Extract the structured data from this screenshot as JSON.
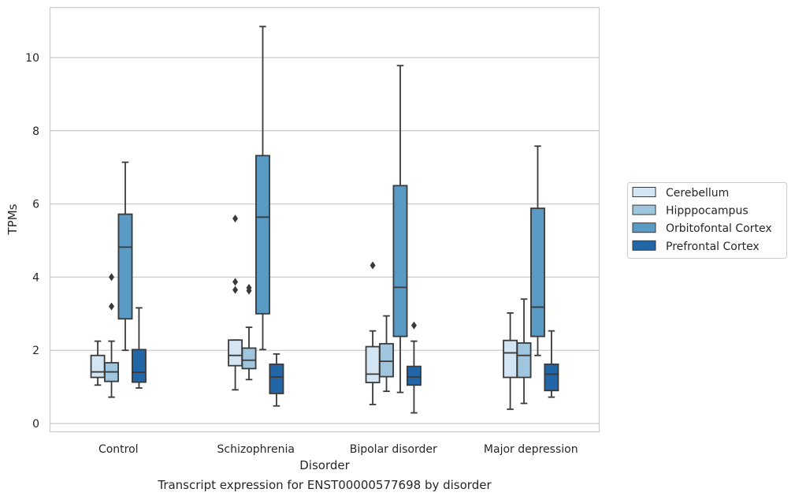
{
  "caption": "Transcript expression for ENST00000577698 by disorder",
  "chart_data": {
    "type": "boxplot",
    "xlabel": "Disorder",
    "ylabel": "TPMs",
    "categories": [
      "Control",
      "Schizophrenia",
      "Bipolar disorder",
      "Major depression"
    ],
    "ylim": [
      -0.2,
      11.4
    ],
    "yticks": [
      0,
      2,
      4,
      6,
      8,
      10
    ],
    "grid": true,
    "legend_position": "right",
    "series": [
      {
        "name": "Cerebellum",
        "color": "#d3e4f3",
        "boxes": [
          {
            "min": 1.05,
            "q1": 1.26,
            "median": 1.41,
            "q3": 1.86,
            "max": 2.25,
            "outliers": []
          },
          {
            "min": 0.92,
            "q1": 1.58,
            "median": 1.86,
            "q3": 2.28,
            "max": 2.28,
            "outliers": [
              5.6,
              3.87,
              3.65
            ]
          },
          {
            "min": 0.52,
            "q1": 1.12,
            "median": 1.35,
            "q3": 2.1,
            "max": 2.53,
            "outliers": [
              4.32
            ]
          },
          {
            "min": 0.39,
            "q1": 1.26,
            "median": 1.93,
            "q3": 2.27,
            "max": 3.02,
            "outliers": []
          }
        ]
      },
      {
        "name": "Hipppocampus",
        "color": "#a0c6df",
        "boxes": [
          {
            "min": 0.72,
            "q1": 1.15,
            "median": 1.41,
            "q3": 1.66,
            "max": 2.25,
            "outliers": [
              4.0,
              3.2
            ]
          },
          {
            "min": 1.2,
            "q1": 1.5,
            "median": 1.73,
            "q3": 2.06,
            "max": 2.63,
            "outliers": [
              3.71,
              3.63
            ]
          },
          {
            "min": 0.88,
            "q1": 1.28,
            "median": 1.7,
            "q3": 2.18,
            "max": 2.94,
            "outliers": []
          },
          {
            "min": 0.55,
            "q1": 1.26,
            "median": 1.86,
            "q3": 2.2,
            "max": 3.4,
            "outliers": []
          }
        ]
      },
      {
        "name": "Orbitofontal Cortex",
        "color": "#5a9bc6",
        "boxes": [
          {
            "min": 2.0,
            "q1": 2.86,
            "median": 4.82,
            "q3": 5.72,
            "max": 7.14,
            "outliers": []
          },
          {
            "min": 2.02,
            "q1": 3.0,
            "median": 5.64,
            "q3": 7.32,
            "max": 10.85,
            "outliers": []
          },
          {
            "min": 0.85,
            "q1": 2.38,
            "median": 3.72,
            "q3": 6.5,
            "max": 9.78,
            "outliers": []
          },
          {
            "min": 1.86,
            "q1": 2.38,
            "median": 3.18,
            "q3": 5.88,
            "max": 7.58,
            "outliers": []
          }
        ]
      },
      {
        "name": "Prefrontal Cortex",
        "color": "#2366a7",
        "boxes": [
          {
            "min": 0.97,
            "q1": 1.13,
            "median": 1.4,
            "q3": 2.02,
            "max": 3.16,
            "outliers": []
          },
          {
            "min": 0.48,
            "q1": 0.82,
            "median": 1.27,
            "q3": 1.62,
            "max": 1.9,
            "outliers": []
          },
          {
            "min": 0.29,
            "q1": 1.05,
            "median": 1.27,
            "q3": 1.56,
            "max": 2.25,
            "outliers": [
              2.68
            ]
          },
          {
            "min": 0.72,
            "q1": 0.9,
            "median": 1.35,
            "q3": 1.62,
            "max": 2.53,
            "outliers": []
          }
        ]
      }
    ]
  }
}
